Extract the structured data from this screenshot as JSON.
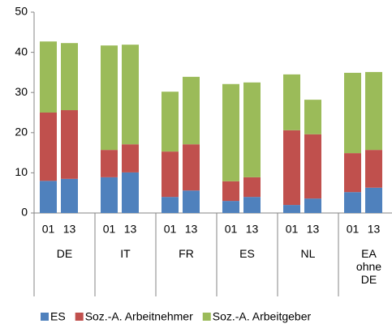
{
  "chart_data": {
    "type": "bar",
    "stacked": true,
    "groups": [
      "DE",
      "IT",
      "FR",
      "ES",
      "NL",
      "EA ohne DE"
    ],
    "categories": [
      "01",
      "13",
      "01",
      "13",
      "01",
      "13",
      "01",
      "13",
      "01",
      "13",
      "01",
      "13"
    ],
    "series": [
      {
        "name": "ES",
        "color": "#4f81bd",
        "values": [
          8,
          8.5,
          8.9,
          10.1,
          4,
          5.6,
          3,
          4,
          2,
          3.6,
          5.2,
          6.3
        ]
      },
      {
        "name": "Soz.-A. Arbeitnehmer",
        "color": "#c0504d",
        "values": [
          17,
          17.1,
          6.8,
          7,
          11.3,
          11.5,
          4.9,
          4.9,
          18.6,
          16,
          9.7,
          9.4
        ]
      },
      {
        "name": "Soz.-A. Arbeitgeber",
        "color": "#9bbb59",
        "values": [
          17.7,
          16.7,
          26,
          24.8,
          14.9,
          16.8,
          24.2,
          23.6,
          13.9,
          8.6,
          20,
          19.4
        ]
      }
    ],
    "ylim": [
      0,
      50
    ],
    "yticks": [
      0,
      10,
      20,
      30,
      40,
      50
    ],
    "grid": false,
    "legend": "bottom"
  }
}
